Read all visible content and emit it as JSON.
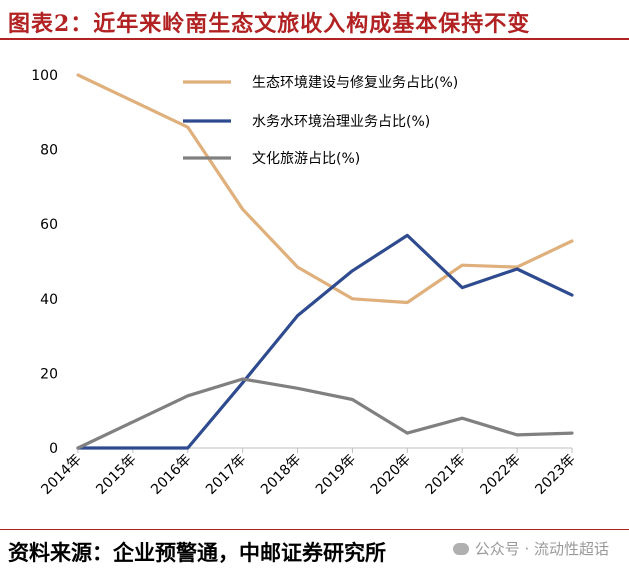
{
  "header": {
    "title": "图表2：近年来岭南生态文旅收入构成基本保持不变"
  },
  "footer": {
    "source": "资料来源：企业预警通，中邮证券研究所"
  },
  "watermark": {
    "text": "公众号 · 流动性超话"
  },
  "chart_data": {
    "type": "line",
    "title": "",
    "xlabel": "",
    "ylabel": "",
    "categories": [
      "2014年",
      "2015年",
      "2016年",
      "2017年",
      "2018年",
      "2019年",
      "2020年",
      "2021年",
      "2022年",
      "2023年"
    ],
    "yticks": [
      "0",
      "20",
      "40",
      "60",
      "80",
      "100"
    ],
    "ylim": [
      0,
      100
    ],
    "grid": false,
    "legend_position": "top-right",
    "series": [
      {
        "name": "生态环境建设与修复业务占比(%)",
        "color": "#E0B07C",
        "values": [
          100,
          93,
          86,
          64,
          48.5,
          40,
          39,
          49,
          48.5,
          55.5
        ]
      },
      {
        "name": "水务水环境治理业务占比(%)",
        "color": "#2F4B8F",
        "values": [
          0,
          0,
          0,
          17.5,
          35.5,
          47.5,
          57,
          43,
          48,
          41
        ]
      },
      {
        "name": "文化旅游占比(%)",
        "color": "#808080",
        "values": [
          0,
          7,
          14,
          18.5,
          16,
          13,
          4,
          8,
          3.5,
          4
        ]
      }
    ]
  }
}
